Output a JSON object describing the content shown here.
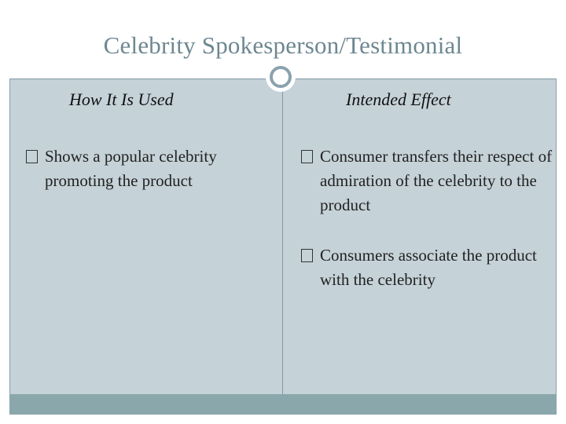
{
  "slide": {
    "title": "Celebrity Spokesperson/Testimonial",
    "colors": {
      "title_text": "#6d8790",
      "content_background": "#c5d2d8",
      "footer_band": "#8aa8ab",
      "accent_line": "#7f9ba6"
    }
  },
  "left_column": {
    "heading": "How It Is Used",
    "items": [
      "Shows a popular celebrity promoting the product"
    ]
  },
  "right_column": {
    "heading": "Intended Effect",
    "items": [
      "Consumer transfers their respect of admiration of the celebrity to the product",
      "Consumers associate the product with the celebrity"
    ]
  },
  "icons": {
    "bullet": "missing-glyph-box-icon",
    "divider_ornament": "circle-ornament-icon"
  }
}
